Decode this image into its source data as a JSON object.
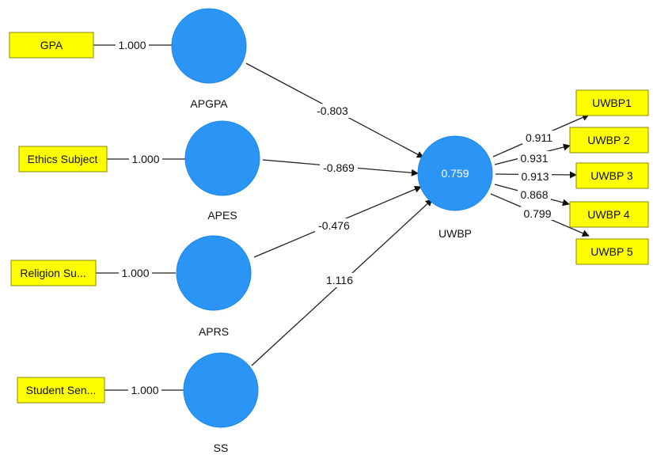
{
  "colors": {
    "latent_fill": "#2b95f5",
    "latent_stroke": "#1f86e6",
    "indicator_fill": "#ffff00",
    "indicator_stroke": "#8a8a00",
    "line": "#222222",
    "text": "#111111",
    "r2_text": "#ffffff"
  },
  "latents": {
    "apgpa": {
      "name": "APGPA"
    },
    "apes": {
      "name": "APES"
    },
    "aprs": {
      "name": "APRS"
    },
    "ss": {
      "name": "SS"
    },
    "uwbp": {
      "name": "UWBP",
      "r_squared": "0.759"
    }
  },
  "indicators": {
    "gpa": {
      "label": "GPA",
      "loading": "1.000"
    },
    "ethics": {
      "label": "Ethics Subject",
      "loading": "1.000"
    },
    "religion": {
      "label": "Religion Su...",
      "loading": "1.000"
    },
    "student": {
      "label": "Student Sen...",
      "loading": "1.000"
    },
    "uwbp1": {
      "label": "UWBP1",
      "loading": "0.911"
    },
    "uwbp2": {
      "label": "UWBP 2",
      "loading": "0.931"
    },
    "uwbp3": {
      "label": "UWBP 3",
      "loading": "0.913"
    },
    "uwbp4": {
      "label": "UWBP 4",
      "loading": "0.868"
    },
    "uwbp5": {
      "label": "UWBP 5",
      "loading": "0.799"
    }
  },
  "paths": {
    "apgpa_uwbp": "-0.803",
    "apes_uwbp": "-0.869",
    "aprs_uwbp": "-0.476",
    "ss_uwbp": "1.116"
  }
}
